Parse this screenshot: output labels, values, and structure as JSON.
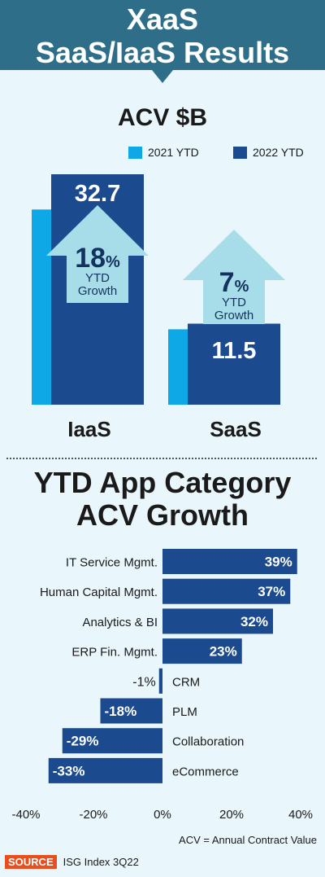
{
  "header": {
    "line1": "XaaS",
    "line2": "SaaS/IaaS Results"
  },
  "acv_chart": {
    "title": "ACV $B"
  },
  "growth_chart": {
    "title_line1": "YTD App Category",
    "title_line2": "ACV Growth"
  },
  "footnote": "ACV = Annual Contract Value",
  "source": {
    "badge": "SOURCE",
    "text": "ISG Index 3Q22"
  },
  "colors": {
    "header_bg": "#2e6e88",
    "light_blue": "#0fa8e6",
    "dark_blue": "#1b4b8e",
    "arrow": "#a7dde9",
    "background": "#e9f6fb"
  },
  "chart_data": [
    {
      "type": "bar",
      "title": "ACV $B",
      "categories": [
        "IaaS",
        "SaaS"
      ],
      "series": [
        {
          "name": "2021 YTD",
          "values": [
            27.7,
            10.7
          ],
          "color": "#0fa8e6"
        },
        {
          "name": "2022 YTD",
          "values": [
            32.7,
            11.5
          ],
          "color": "#1b4b8e"
        }
      ],
      "data_labels": [
        "32.7",
        "11.5"
      ],
      "growth": [
        {
          "value": "18",
          "suffix": "%",
          "line1": "YTD",
          "line2": "Growth"
        },
        {
          "value": "7",
          "suffix": "%",
          "line1": "YTD",
          "line2": "Growth"
        }
      ],
      "legend": "top",
      "ylim": [
        0,
        34
      ]
    },
    {
      "type": "bar",
      "orientation": "horizontal",
      "categories": [
        "IT Service Mgmt.",
        "Human Capital Mgmt.",
        "Analytics & BI",
        "ERP Fin. Mgmt.",
        "CRM",
        "PLM",
        "Collaboration",
        "eCommerce"
      ],
      "values": [
        39,
        37,
        32,
        23,
        -1,
        -18,
        -29,
        -33
      ],
      "labels": [
        "39%",
        "37%",
        "32%",
        "23%",
        "-1%",
        "-18%",
        "-29%",
        "-33%"
      ],
      "xticks": [
        "-40%",
        "-20%",
        "0%",
        "20%",
        "40%"
      ],
      "xlim": [
        -40,
        40
      ],
      "color": "#1b4b8e"
    }
  ]
}
